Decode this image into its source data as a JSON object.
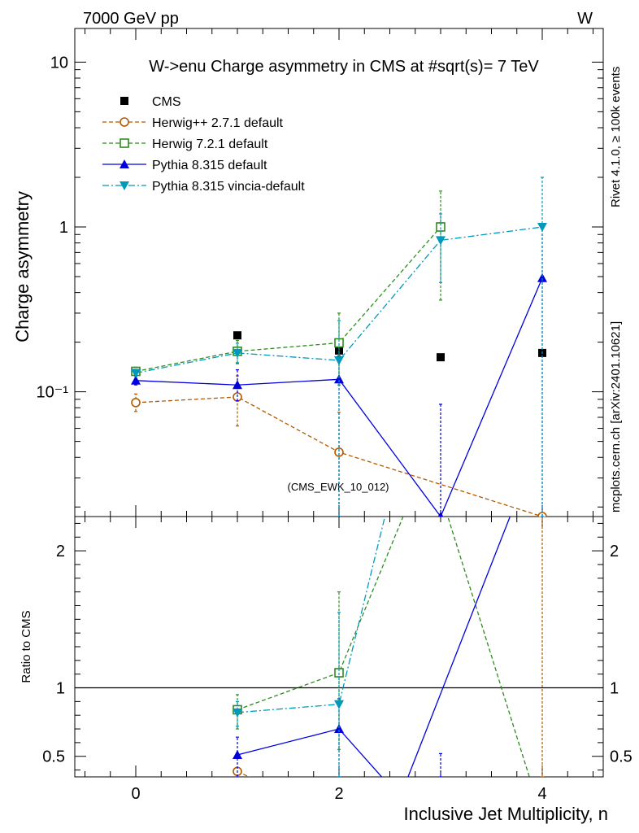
{
  "header": {
    "energy": "7000 GeV pp",
    "process": "W"
  },
  "side_labels": {
    "rivet": "Rivet 4.1.0, ≥ 100k events",
    "source": "mcplots.cern.ch [arXiv:2401.10621]"
  },
  "watermark": "(CMS_EWK_10_012)",
  "chart_data": [
    {
      "type": "line",
      "panel": "main",
      "title": "W->enu Charge asymmetry in CMS at #sqrt(s)= 7 TeV",
      "xlabel": "Inclusive Jet Multiplicity, n",
      "ylabel": "Charge asymmetry",
      "yscale": "log",
      "xlim": [
        -0.6,
        4.6
      ],
      "ylim": [
        0.0175,
        16
      ],
      "y_ticks": [
        {
          "v": 10,
          "label": "10"
        },
        {
          "v": 1,
          "label": "1"
        },
        {
          "v": 0.1,
          "label": "10⁻¹"
        }
      ],
      "series": [
        {
          "name": "CMS",
          "color": "#000000",
          "marker": "square-filled",
          "dash": "none",
          "points": [
            {
              "x": 1,
              "y": 0.22
            },
            {
              "x": 2,
              "y": 0.178
            },
            {
              "x": 3,
              "y": 0.162
            },
            {
              "x": 4,
              "y": 0.172
            }
          ]
        },
        {
          "name": "Herwig++ 2.7.1 default",
          "color": "#b35900",
          "marker": "circle-open",
          "dash": "5,3",
          "points": [
            {
              "x": 0,
              "y": 0.086,
              "lo": 0.076,
              "hi": 0.097
            },
            {
              "x": 1,
              "y": 0.093,
              "lo": 0.062,
              "hi": 0.125
            },
            {
              "x": 2,
              "y": 0.043,
              "lo": 0.0175,
              "hi": 0.075
            },
            {
              "x": 4,
              "y": 0.0175,
              "lo": 0.0175,
              "hi": 0.0175
            }
          ]
        },
        {
          "name": "Herwig 7.2.1 default",
          "color": "#2e8b1f",
          "marker": "square-open",
          "dash": "5,3",
          "points": [
            {
              "x": 0,
              "y": 0.133,
              "lo": 0.126,
              "hi": 0.141
            },
            {
              "x": 1,
              "y": 0.176,
              "lo": 0.148,
              "hi": 0.205
            },
            {
              "x": 2,
              "y": 0.198,
              "lo": 0.11,
              "hi": 0.3
            },
            {
              "x": 3,
              "y": 1.0,
              "lo": 0.36,
              "hi": 1.65
            }
          ]
        },
        {
          "name": "Pythia 8.315 default",
          "color": "#0000dd",
          "marker": "triangle-up",
          "dash": "none",
          "points": [
            {
              "x": 0,
              "y": 0.117,
              "lo": 0.11,
              "hi": 0.124
            },
            {
              "x": 1,
              "y": 0.11,
              "lo": 0.088,
              "hi": 0.136
            },
            {
              "x": 2,
              "y": 0.119,
              "lo": 0.0175,
              "hi": 0.165
            },
            {
              "x": 3,
              "y": 0.0175,
              "lo": 0.0175,
              "hi": 0.084
            },
            {
              "x": 4,
              "y": 0.49,
              "lo": 0.0175,
              "hi": 1.05
            }
          ]
        },
        {
          "name": "Pythia 8.315 vincia-default",
          "color": "#0099bb",
          "marker": "triangle-down",
          "dash": "8,3,2,3",
          "points": [
            {
              "x": 0,
              "y": 0.13,
              "lo": 0.124,
              "hi": 0.137
            },
            {
              "x": 1,
              "y": 0.172,
              "lo": 0.15,
              "hi": 0.197
            },
            {
              "x": 2,
              "y": 0.155,
              "lo": 0.0175,
              "hi": 0.27
            },
            {
              "x": 3,
              "y": 0.83,
              "lo": 0.46,
              "hi": 1.2
            },
            {
              "x": 4,
              "y": 1.0,
              "lo": 0.0175,
              "hi": 2.0
            }
          ]
        }
      ]
    },
    {
      "type": "line",
      "panel": "ratio",
      "ylabel": "Ratio to CMS",
      "xlabel": "Inclusive Jet Multiplicity, n",
      "xlim": [
        -0.6,
        4.6
      ],
      "ylim": [
        0.35,
        2.25
      ],
      "x_ticks": [
        0,
        2,
        4
      ],
      "y_ticks": [
        0.5,
        1,
        2
      ],
      "reference_line": 1,
      "series": [
        {
          "name": "Herwig++ 2.7.1 default",
          "color": "#b35900",
          "marker": "circle-open",
          "dash": "5,3",
          "points": [
            {
              "x": 1,
              "y": 0.39
            },
            {
              "x": 1.4,
              "y": 0.25
            }
          ],
          "errorbars": [
            {
              "x": 4,
              "lo": 0.35,
              "hi": 2.25
            }
          ]
        },
        {
          "name": "Herwig 7.2.1 default",
          "color": "#2e8b1f",
          "marker": "square-open",
          "dash": "5,3",
          "points": [
            {
              "x": 1,
              "y": 0.84,
              "lo": 0.7,
              "hi": 0.95
            },
            {
              "x": 2,
              "y": 1.11,
              "lo": 0.55,
              "hi": 1.7
            },
            {
              "x": 2.88,
              "y": 2.7
            },
            {
              "x": 4,
              "y": 0.05
            }
          ]
        },
        {
          "name": "Pythia 8.315 default",
          "color": "#0000dd",
          "marker": "triangle-up",
          "dash": "none",
          "points": [
            {
              "x": 1,
              "y": 0.51,
              "lo": 0.35,
              "hi": 0.64
            },
            {
              "x": 2,
              "y": 0.7,
              "lo": 0.35,
              "hi": 0.92
            },
            {
              "x": 2.6,
              "y": 0.2
            },
            {
              "x": 4,
              "y": 2.85
            }
          ],
          "errorbars": [
            {
              "x": 3,
              "lo": 0.35,
              "hi": 0.52
            }
          ]
        },
        {
          "name": "Pythia 8.315 vincia-default",
          "color": "#0099bb",
          "marker": "triangle-down",
          "dash": "8,3,2,3",
          "points": [
            {
              "x": 1,
              "y": 0.82,
              "lo": 0.72,
              "hi": 0.9
            },
            {
              "x": 2,
              "y": 0.88,
              "lo": 0.35,
              "hi": 1.55
            },
            {
              "x": 2.6,
              "y": 2.7
            }
          ]
        }
      ]
    }
  ]
}
